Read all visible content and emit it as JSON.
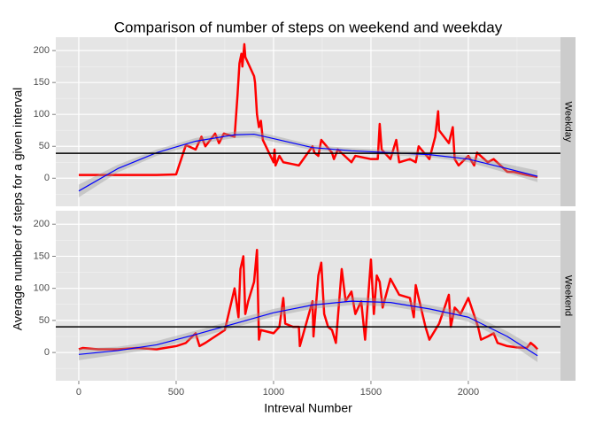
{
  "chart_data": {
    "type": "line",
    "title": "Comparison of number of steps on weekend and weekday",
    "x_label": "Intreval Number",
    "y_label": "Average number of steps for a given interval",
    "xlim": [
      -118,
      2473
    ],
    "xticks": [
      0,
      500,
      1000,
      1500,
      2000
    ],
    "minor_xticks": [
      250,
      750,
      1250,
      1750,
      2250
    ],
    "ylim": [
      -44,
      221
    ],
    "yticks": [
      0,
      50,
      100,
      150,
      200
    ],
    "minor_yticks": [
      -25,
      25,
      75,
      125,
      175
    ],
    "grid": true,
    "panels": [
      {
        "label": "Weekday",
        "hline": 39,
        "series": [
          {
            "color": "#ff0000",
            "x": [
              0,
              100,
              200,
              300,
              400,
              500,
              515,
              550,
              600,
              630,
              650,
              700,
              720,
              745,
              800,
              815,
              825,
              835,
              840,
              850,
              855,
              900,
              905,
              915,
              925,
              935,
              945,
              1000,
              1005,
              1010,
              1030,
              1050,
              1100,
              1130,
              1200,
              1210,
              1230,
              1245,
              1300,
              1310,
              1330,
              1400,
              1420,
              1500,
              1535,
              1545,
              1555,
              1600,
              1615,
              1630,
              1645,
              1700,
              1730,
              1745,
              1800,
              1830,
              1845,
              1850,
              1900,
              1920,
              1930,
              1950,
              2000,
              2030,
              2045,
              2100,
              2130,
              2200,
              2230,
              2300,
              2355
            ],
            "values": [
              5,
              5,
              5,
              5,
              5,
              6,
              20,
              52,
              45,
              65,
              50,
              70,
              55,
              70,
              65,
              130,
              180,
              195,
              175,
              210,
              190,
              160,
              150,
              100,
              80,
              90,
              60,
              25,
              45,
              20,
              35,
              25,
              22,
              20,
              50,
              40,
              35,
              60,
              40,
              30,
              45,
              25,
              35,
              30,
              30,
              85,
              45,
              30,
              45,
              60,
              25,
              30,
              25,
              50,
              30,
              65,
              105,
              75,
              55,
              80,
              30,
              20,
              35,
              20,
              40,
              25,
              30,
              10,
              10,
              5,
              2
            ]
          },
          {
            "color": "#0000ff",
            "band_color": "#999999",
            "x": [
              0,
              200,
              400,
              600,
              800,
              900,
              1000,
              1200,
              1400,
              1600,
              1800,
              2000,
              2200,
              2355
            ],
            "values": [
              -20,
              15,
              40,
              58,
              68,
              69,
              62,
              48,
              43,
              40,
              37,
              30,
              15,
              3
            ],
            "lower": [
              -30,
              9,
              35,
              53,
              63,
              64,
              57,
              44,
              39,
              36,
              33,
              25,
              8,
              -6
            ],
            "upper": [
              -10,
              21,
              45,
              63,
              73,
              74,
              67,
              52,
              47,
              44,
              41,
              35,
              22,
              12
            ]
          }
        ]
      },
      {
        "label": "Weekend",
        "hline": 40,
        "series": [
          {
            "color": "#ff0000",
            "x": [
              0,
              20,
              100,
              200,
              300,
              400,
              500,
              550,
              600,
              620,
              650,
              700,
              750,
              800,
              820,
              830,
              845,
              855,
              870,
              900,
              915,
              925,
              935,
              1000,
              1030,
              1050,
              1060,
              1100,
              1130,
              1135,
              1200,
              1205,
              1230,
              1245,
              1260,
              1280,
              1300,
              1320,
              1350,
              1370,
              1400,
              1420,
              1450,
              1470,
              1500,
              1515,
              1530,
              1545,
              1560,
              1600,
              1645,
              1700,
              1720,
              1730,
              1745,
              1780,
              1800,
              1850,
              1900,
              1910,
              1930,
              1960,
              2000,
              2050,
              2065,
              2100,
              2130,
              2150,
              2200,
              2250,
              2300,
              2320,
              2340,
              2355
            ],
            "values": [
              5,
              7,
              5,
              5,
              7,
              5,
              10,
              15,
              30,
              10,
              15,
              25,
              35,
              100,
              55,
              130,
              150,
              60,
              80,
              110,
              160,
              20,
              35,
              30,
              40,
              85,
              45,
              40,
              40,
              10,
              80,
              25,
              120,
              140,
              60,
              40,
              35,
              15,
              130,
              80,
              95,
              60,
              80,
              20,
              145,
              60,
              120,
              110,
              70,
              115,
              90,
              85,
              55,
              105,
              85,
              40,
              20,
              45,
              90,
              40,
              70,
              60,
              85,
              40,
              20,
              25,
              30,
              15,
              10,
              8,
              7,
              15,
              10,
              5
            ]
          },
          {
            "color": "#0000ff",
            "band_color": "#999999",
            "x": [
              0,
              200,
              400,
              600,
              800,
              1000,
              1200,
              1400,
              1600,
              1800,
              2000,
              2200,
              2355
            ],
            "values": [
              -3,
              3,
              12,
              28,
              45,
              62,
              74,
              80,
              78,
              68,
              55,
              25,
              -5
            ],
            "lower": [
              -12,
              -3,
              6,
              22,
              39,
              56,
              68,
              74,
              72,
              62,
              48,
              17,
              -15
            ],
            "upper": [
              6,
              9,
              18,
              34,
              51,
              68,
              80,
              86,
              84,
              74,
              62,
              33,
              5
            ]
          }
        ]
      }
    ]
  }
}
